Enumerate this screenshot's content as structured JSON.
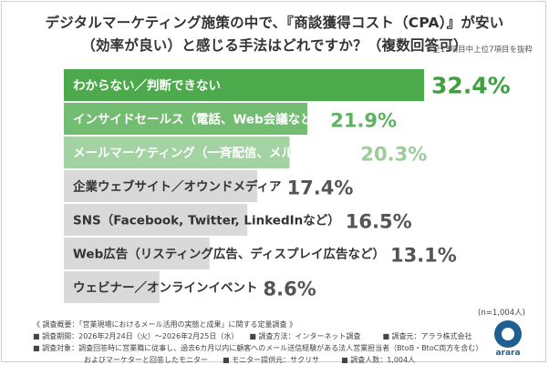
{
  "title": {
    "line1": "デジタルマーケティング施策の中で、『商談獲得コスト（CPA）』が安い",
    "line2": "（効率が良い）と感じる手法はどれですか？（複数回答可）"
  },
  "note_top": "※全13項目中上位7項目を抜粋",
  "chart_data": {
    "type": "bar",
    "orientation": "horizontal",
    "categories": [
      "わからない／判断できない",
      "インサイドセールス（電話、Web会議など）",
      "メールマーケティング（一斉配信、メルマガなど）",
      "企業ウェブサイト／オウンドメディア",
      "SNS（Facebook, Twitter, LinkedInなど）",
      "Web広告（リスティング広告、ディスプレイ広告など）",
      "ウェビナー／オンラインイベント"
    ],
    "values": [
      32.4,
      21.9,
      20.3,
      17.4,
      16.5,
      13.1,
      8.6
    ],
    "value_labels": [
      "32.4%",
      "21.9%",
      "20.3%",
      "17.4%",
      "16.5%",
      "13.1%",
      "8.6%"
    ],
    "unit": "%",
    "colors": {
      "bars": [
        "#4ca94c",
        "#72bd72",
        "#a3d3a3",
        "#d9d9d9",
        "#d9d9d9",
        "#d9d9d9",
        "#d9d9d9"
      ],
      "labels": [
        "#ffffff",
        "#ffffff",
        "#ffffff",
        "#333333",
        "#333333",
        "#333333",
        "#333333"
      ],
      "values": [
        "#3f9e3f",
        "#5fb25f",
        "#9acd9a",
        "#555555",
        "#555555",
        "#555555",
        "#555555"
      ]
    }
  },
  "n_note": "(n=1,004人)",
  "footer": {
    "line1": "《 調査概要：「営業現場におけるメール活用の実態と成果」に関する定量調査 》",
    "line2": "■ 調査期間：2026年2月24日（火）〜2026年2月25日（水）　　■ 調査方法：インターネット調査　　　■ 調査元：アララ株式会社",
    "line3": "■ 調査対象：調査回答時に営業職に従事し、過去6カ月以内に顧客へのメール送信経験がある法人営業担当者（BtoB・BtoC両方を含む）",
    "line4": "　　　　　　　およびマーケターと回答したモニター　　■ モニター提供元：サクリサ　　　■ 調査人数：1,004人"
  },
  "logo": {
    "text": "arara"
  }
}
